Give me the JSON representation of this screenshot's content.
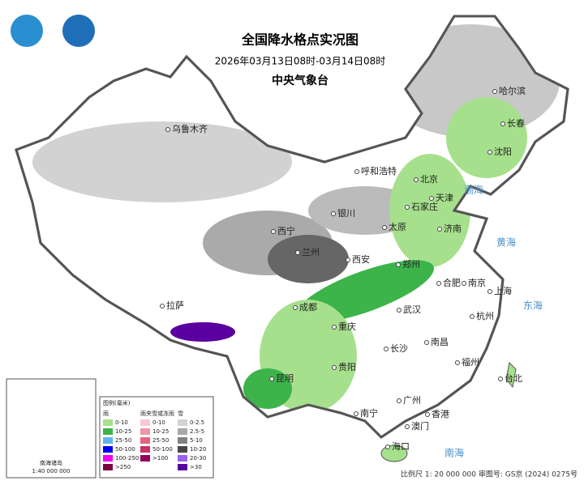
{
  "header": {
    "title": "全国降水格点实况图",
    "period": "2026年03月13日08时-03月14日08时",
    "org": "中央气象台"
  },
  "cities": [
    "乌鲁木齐",
    "哈尔滨",
    "长春",
    "沈阳",
    "呼和浩特",
    "北京",
    "天津",
    "石家庄",
    "银川",
    "太原",
    "济南",
    "西宁",
    "兰州",
    "西安",
    "郑州",
    "合肥",
    "南京",
    "上海",
    "拉萨",
    "成都",
    "武汉",
    "重庆",
    "杭州",
    "长沙",
    "南昌",
    "福州",
    "贵阳",
    "昆明",
    "台北",
    "广州",
    "南宁",
    "香港",
    "澳门",
    "海口"
  ],
  "seas": [
    "渤海",
    "黄海",
    "东海",
    "南海"
  ],
  "legend": {
    "title": "图例(毫米)",
    "columns": [
      {
        "name": "雨",
        "items": [
          {
            "label": "0-10",
            "color": "#a6e08c"
          },
          {
            "label": "10-25",
            "color": "#3cb44a"
          },
          {
            "label": "25-50",
            "color": "#5fb4f0"
          },
          {
            "label": "50-100",
            "color": "#0000f0"
          },
          {
            "label": "100-250",
            "color": "#f000f0"
          },
          {
            "label": ">250",
            "color": "#800040"
          }
        ]
      },
      {
        "name": "雨夹雪或冻雨",
        "items": [
          {
            "label": "0-10",
            "color": "#fac8d2"
          },
          {
            "label": "10-25",
            "color": "#f096aa"
          },
          {
            "label": "25-50",
            "color": "#e66482"
          },
          {
            "label": "50-100",
            "color": "#c83264"
          },
          {
            "label": ">100",
            "color": "#96005a"
          }
        ]
      },
      {
        "name": "雪",
        "items": [
          {
            "label": "0-2.5",
            "color": "#d2d2d2"
          },
          {
            "label": "2.5-5",
            "color": "#aaaaaa"
          },
          {
            "label": "5-10",
            "color": "#828282"
          },
          {
            "label": "10-20",
            "color": "#464646"
          },
          {
            "label": "20-30",
            "color": "#9664f0"
          },
          {
            "label": ">30",
            "color": "#5a00a0"
          }
        ]
      }
    ]
  },
  "inset": {
    "title": "南海诸岛",
    "scale": "1:40 000 000"
  },
  "footer": "比例尺 1: 20 000 000  审图号: GS京 (2024) 0275号"
}
